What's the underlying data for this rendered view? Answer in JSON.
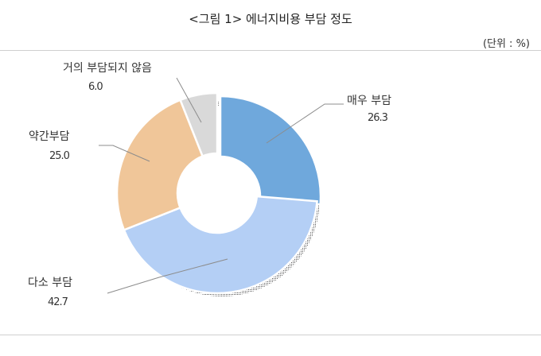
{
  "header": {
    "title": "<그림 1> 에너지비용 부담 정도",
    "unit": "(단위 : %)"
  },
  "chart_data": {
    "type": "pie",
    "title": "<그림 1> 에너지비용 부담 정도",
    "unit": "%",
    "categories": [
      "매우 부담",
      "다소 부담",
      "약간부담",
      "거의 부담되지 않음"
    ],
    "values": [
      26.3,
      42.7,
      25.0,
      6.0
    ],
    "value_labels": [
      "26.3",
      "42.7",
      "25.0",
      "6.0"
    ],
    "colors": [
      "#6fa8dc",
      "#b4cff5",
      "#f0c699",
      "#d9d9d9"
    ],
    "donut": true,
    "legend": "none",
    "exploded": "매우 부담"
  }
}
